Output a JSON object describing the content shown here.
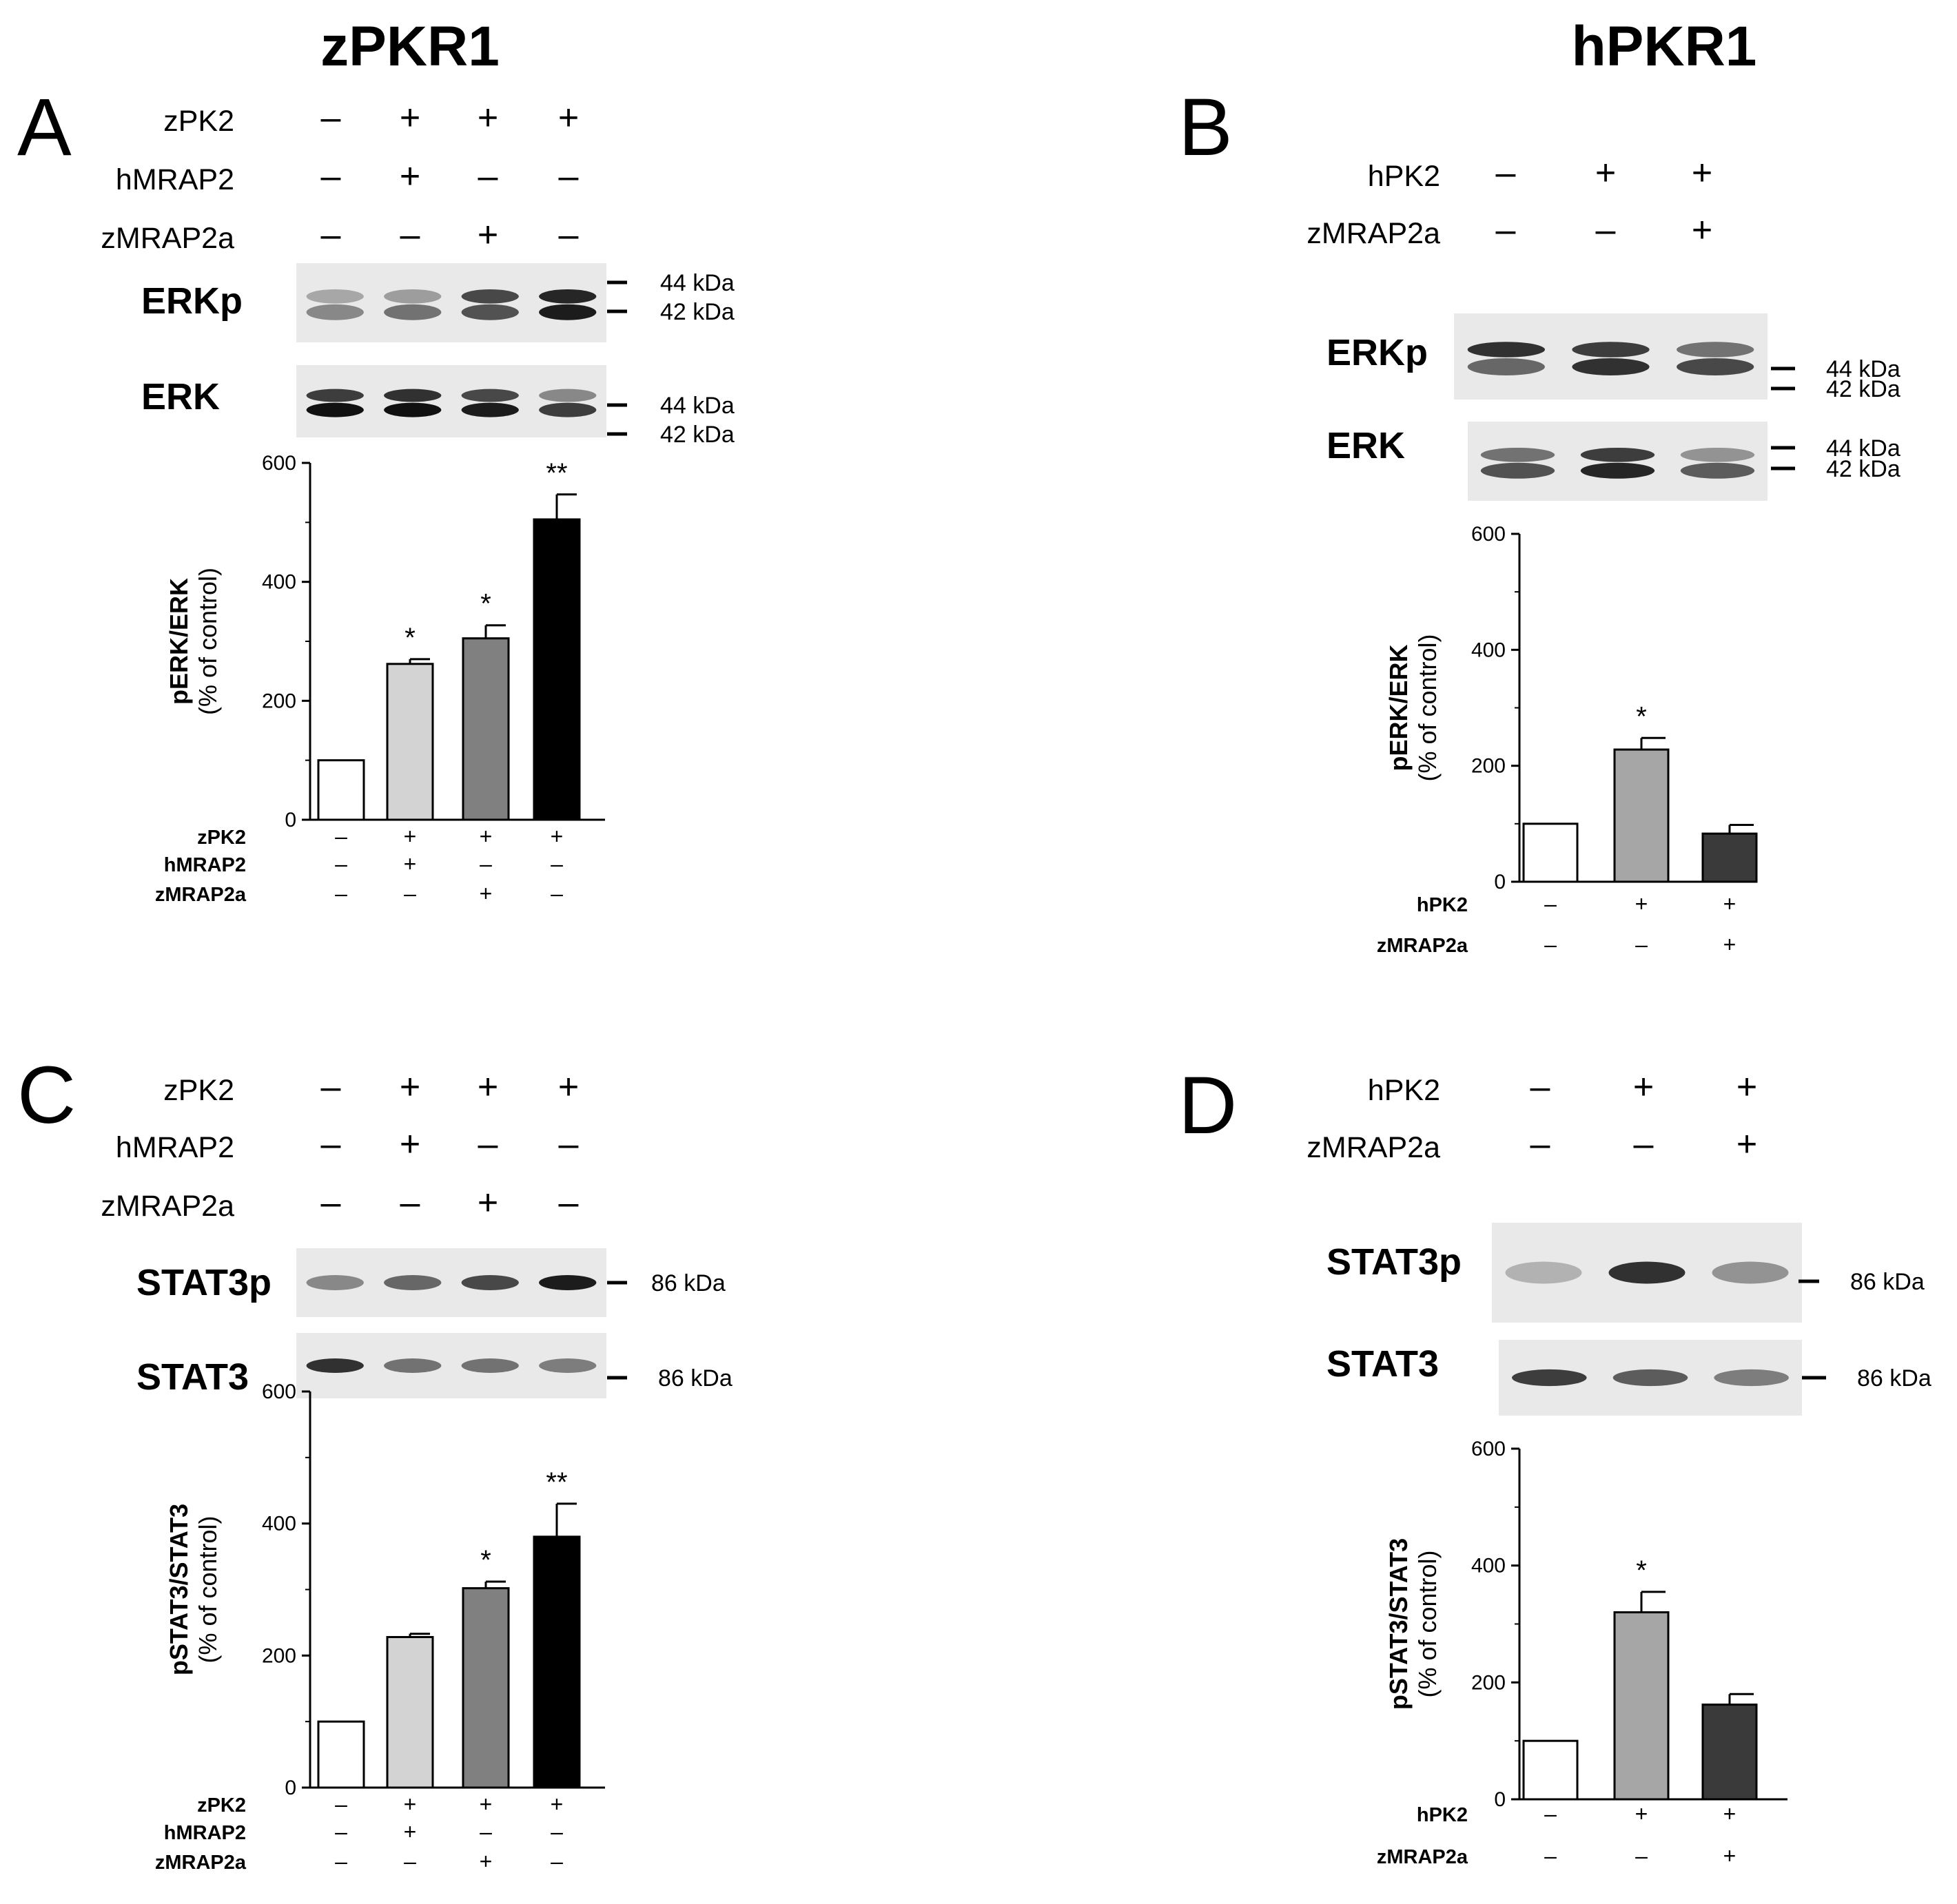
{
  "titles": {
    "left": "zPKR1",
    "right": "hPKR1"
  },
  "panels": [
    {
      "id": "A",
      "letter": "A",
      "treatments": [
        {
          "name": "zPK2",
          "signs": [
            "–",
            "+",
            "+",
            "+"
          ]
        },
        {
          "name": "hMRAP2",
          "signs": [
            "–",
            "+",
            "–",
            "–"
          ]
        },
        {
          "name": "zMRAP2a",
          "signs": [
            "–",
            "–",
            "+",
            "–"
          ]
        }
      ],
      "blots": [
        {
          "label": "ERKp",
          "markers": [
            "44 kDa",
            "42 kDa"
          ]
        },
        {
          "label": "ERK",
          "markers": [
            "44 kDa",
            "42 kDa"
          ]
        }
      ],
      "ylabel_main": "pERK/ERK",
      "ylabel_sub": "(% of control)"
    },
    {
      "id": "B",
      "letter": "B",
      "treatments": [
        {
          "name": "hPK2",
          "signs": [
            "–",
            "+",
            "+"
          ]
        },
        {
          "name": "zMRAP2a",
          "signs": [
            "–",
            "–",
            "+"
          ]
        }
      ],
      "blots": [
        {
          "label": "ERKp",
          "markers": [
            "44 kDa",
            "42 kDa"
          ]
        },
        {
          "label": "ERK",
          "markers": [
            "44 kDa",
            "42 kDa"
          ]
        }
      ],
      "ylabel_main": "pERK/ERK",
      "ylabel_sub": "(% of control)"
    },
    {
      "id": "C",
      "letter": "C",
      "treatments": [
        {
          "name": "zPK2",
          "signs": [
            "–",
            "+",
            "+",
            "+"
          ]
        },
        {
          "name": "hMRAP2",
          "signs": [
            "–",
            "+",
            "–",
            "–"
          ]
        },
        {
          "name": "zMRAP2a",
          "signs": [
            "–",
            "–",
            "+",
            "–"
          ]
        }
      ],
      "blots": [
        {
          "label": "STAT3p",
          "markers": [
            "86  kDa"
          ]
        },
        {
          "label": "STAT3",
          "markers": [
            "86  kDa"
          ]
        }
      ],
      "ylabel_main": "pSTAT3/STAT3",
      "ylabel_sub": "(% of control)"
    },
    {
      "id": "D",
      "letter": "D",
      "treatments": [
        {
          "name": "hPK2",
          "signs": [
            "–",
            "+",
            "+"
          ]
        },
        {
          "name": "zMRAP2a",
          "signs": [
            "–",
            "–",
            "+"
          ]
        }
      ],
      "blots": [
        {
          "label": "STAT3p",
          "markers": [
            "86  kDa"
          ]
        },
        {
          "label": "STAT3",
          "markers": [
            "86  kDa"
          ]
        }
      ],
      "ylabel_main": "pSTAT3/STAT3",
      "ylabel_sub": "(% of control)"
    }
  ],
  "chart_data": [
    {
      "panel": "A",
      "type": "bar",
      "ylabel": "pERK/ERK (% of control)",
      "ylim": [
        0,
        600
      ],
      "yticks": [
        0,
        200,
        400,
        600
      ],
      "values": [
        100,
        262,
        305,
        505
      ],
      "errors": [
        0,
        8,
        22,
        42
      ],
      "significance": [
        "",
        "*",
        "*",
        "**"
      ],
      "colors": [
        "#ffffff",
        "#d3d3d3",
        "#808080",
        "#000000"
      ]
    },
    {
      "panel": "B",
      "type": "bar",
      "ylabel": "pERK/ERK (% of control)",
      "ylim": [
        0,
        600
      ],
      "yticks": [
        0,
        200,
        400,
        600
      ],
      "values": [
        100,
        228,
        83
      ],
      "errors": [
        0,
        20,
        15
      ],
      "significance": [
        "",
        "*",
        ""
      ],
      "colors": [
        "#ffffff",
        "#a6a6a6",
        "#3a3a3a"
      ]
    },
    {
      "panel": "C",
      "type": "bar",
      "ylabel": "pSTAT3/STAT3 (% of control)",
      "ylim": [
        0,
        600
      ],
      "yticks": [
        0,
        200,
        400,
        600
      ],
      "values": [
        100,
        228,
        302,
        380
      ],
      "errors": [
        0,
        5,
        10,
        50
      ],
      "significance": [
        "",
        "",
        "*",
        "**"
      ],
      "colors": [
        "#ffffff",
        "#d3d3d3",
        "#808080",
        "#000000"
      ]
    },
    {
      "panel": "D",
      "type": "bar",
      "ylabel": "pSTAT3/STAT3 (% of control)",
      "ylim": [
        0,
        600
      ],
      "yticks": [
        0,
        200,
        400,
        600
      ],
      "values": [
        100,
        320,
        162
      ],
      "errors": [
        0,
        35,
        18
      ],
      "significance": [
        "",
        "*",
        ""
      ],
      "colors": [
        "#ffffff",
        "#a6a6a6",
        "#3a3a3a"
      ]
    }
  ]
}
